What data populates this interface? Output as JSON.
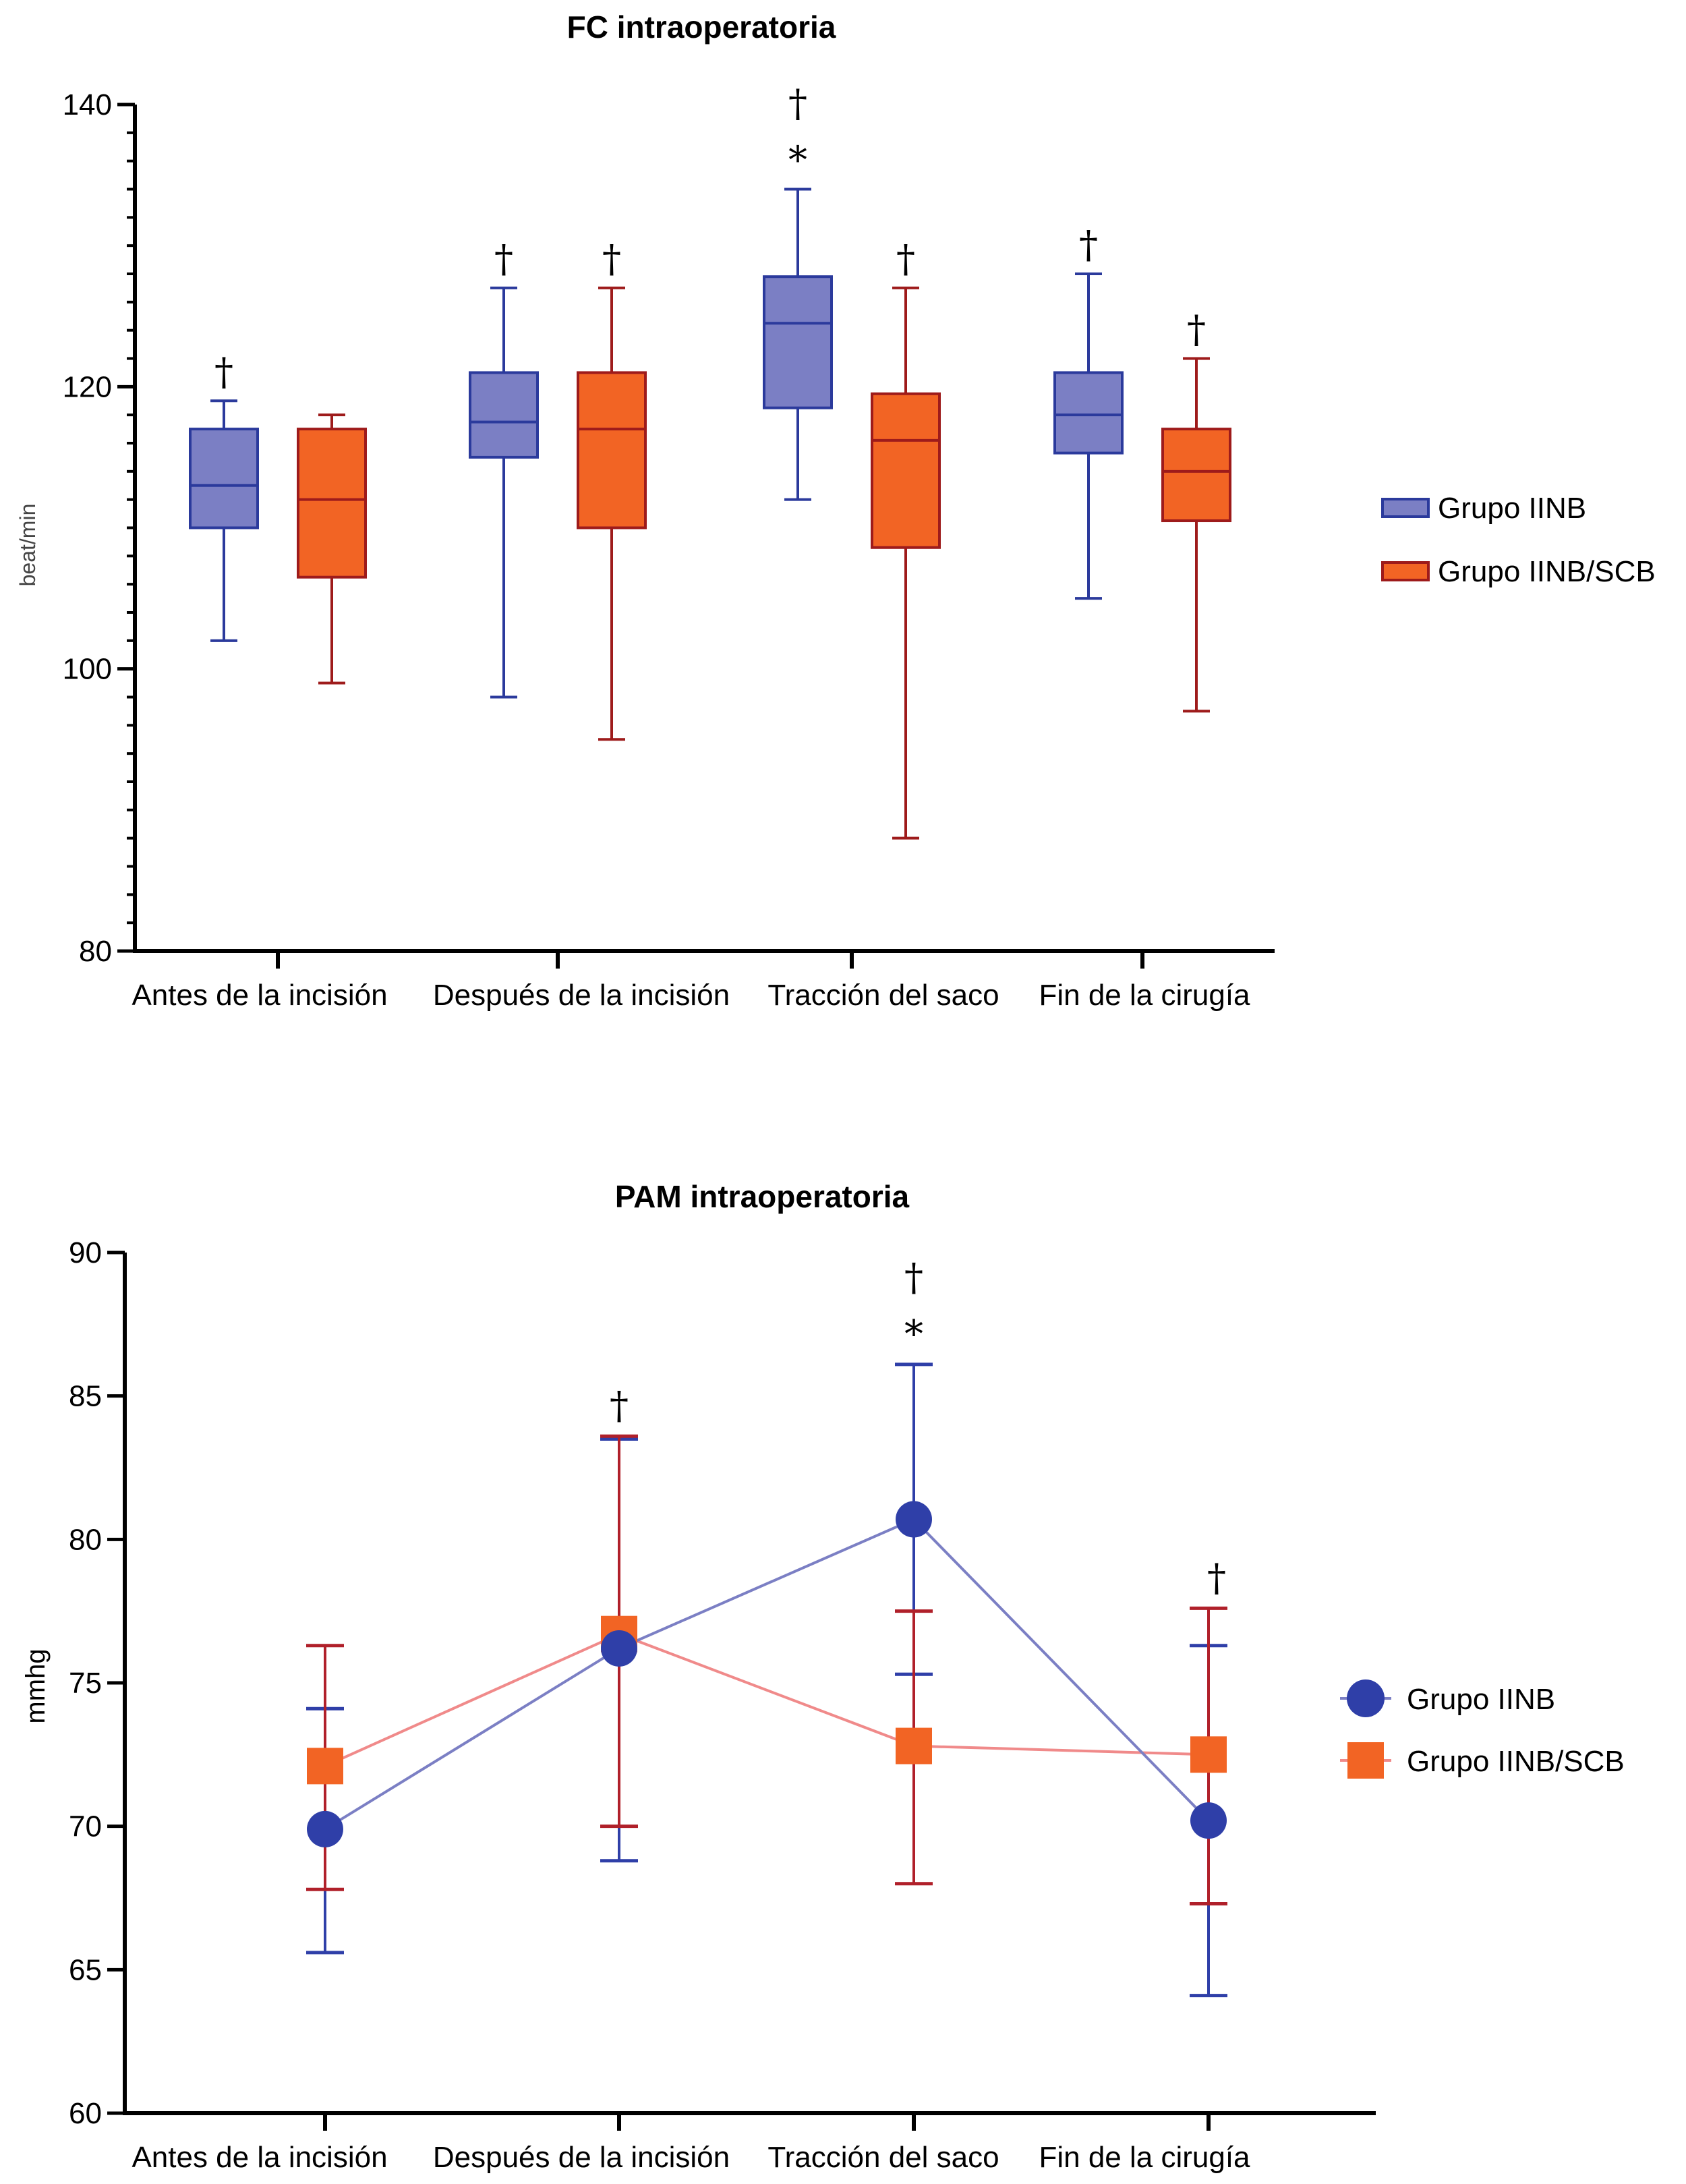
{
  "chart_data": [
    {
      "type": "box",
      "title": "FC intraoperatoria",
      "ylabel": "beat/min",
      "xlabel": "",
      "ylim": [
        80,
        140
      ],
      "yticks": [
        80,
        100,
        120,
        140
      ],
      "categories": [
        "Antes de la incisión",
        "Después de la incisión",
        "Tracción del saco",
        "Fin de la cirugía"
      ],
      "legend_position": "right",
      "series": [
        {
          "name": "Grupo IINB",
          "color": "#7b7fc4",
          "edge_color": "#2b3a9c",
          "boxes": [
            {
              "min": 102,
              "q1": 110,
              "median": 113,
              "q3": 117,
              "max": 119
            },
            {
              "min": 98,
              "q1": 115,
              "median": 117.5,
              "q3": 121,
              "max": 127
            },
            {
              "min": 112,
              "q1": 118.5,
              "median": 124.5,
              "q3": 127.8,
              "max": 134
            },
            {
              "min": 105,
              "q1": 115.3,
              "median": 118,
              "q3": 121,
              "max": 128
            }
          ],
          "markers": [
            [
              "†"
            ],
            [
              "†"
            ],
            [
              "†",
              "*"
            ],
            [
              "†"
            ]
          ]
        },
        {
          "name": "Grupo IINB/SCB",
          "color": "#f26424",
          "edge_color": "#9e1b1b",
          "boxes": [
            {
              "min": 99,
              "q1": 106.5,
              "median": 112,
              "q3": 117,
              "max": 118
            },
            {
              "min": 95,
              "q1": 110,
              "median": 117,
              "q3": 121,
              "max": 127
            },
            {
              "min": 88,
              "q1": 108.6,
              "median": 116.2,
              "q3": 119.5,
              "max": 127
            },
            {
              "min": 97,
              "q1": 110.5,
              "median": 114,
              "q3": 117,
              "max": 122
            }
          ],
          "markers": [
            [],
            [
              "†"
            ],
            [
              "†"
            ],
            [
              "†"
            ]
          ]
        }
      ]
    },
    {
      "type": "line",
      "title": "PAM intraoperatoria",
      "ylabel": "mmhg",
      "xlabel": "",
      "ylim": [
        60,
        90
      ],
      "yticks": [
        60,
        65,
        70,
        75,
        80,
        85,
        90
      ],
      "categories": [
        "Antes de la incisión",
        "Después de la incisión",
        "Tracción del saco",
        "Fin de la cirugía"
      ],
      "legend_position": "right",
      "series": [
        {
          "name": "Grupo IINB",
          "color": "#2f3fa8",
          "line_color": "#7b7fc4",
          "marker": "circle",
          "values": [
            69.9,
            76.2,
            80.7,
            70.2
          ],
          "error_low": [
            65.6,
            68.8,
            75.3,
            64.1
          ],
          "error_high": [
            74.1,
            83.5,
            86.1,
            76.3
          ]
        },
        {
          "name": "Grupo IINB/SCB",
          "color": "#f26424",
          "line_color": "#f08a8a",
          "error_color": "#b0202a",
          "marker": "square",
          "values": [
            72.1,
            76.7,
            72.8,
            72.5
          ],
          "error_low": [
            67.8,
            70.0,
            68.0,
            67.3
          ],
          "error_high": [
            76.3,
            83.6,
            77.5,
            77.6
          ]
        }
      ],
      "markers": [
        [],
        [
          "†"
        ],
        [
          "†",
          "*"
        ],
        [
          "†"
        ]
      ]
    }
  ]
}
